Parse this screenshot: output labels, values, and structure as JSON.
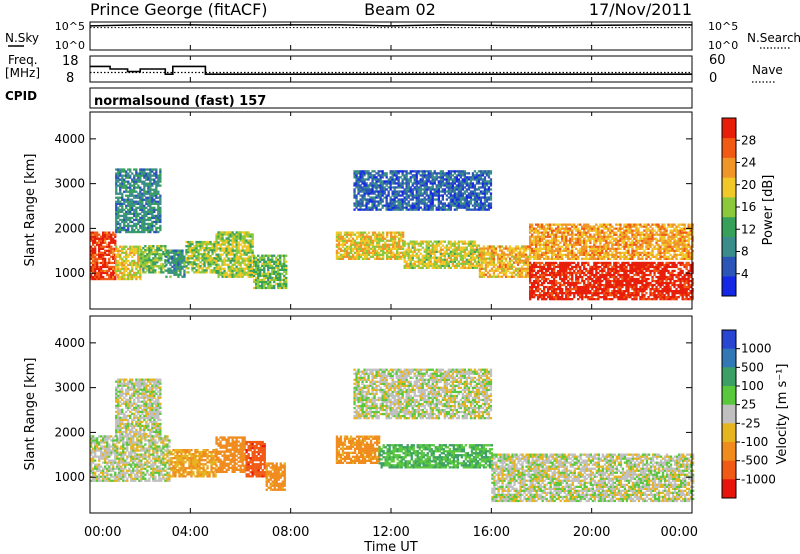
{
  "header": {
    "station": "Prince George (fitACF)",
    "beam": "Beam 02",
    "date": "17/Nov/2011"
  },
  "panels": {
    "nsky_label": "N.Sky",
    "nsky_ticks": [
      "10^5",
      "10^0"
    ],
    "nsearch_label": "N.Search",
    "freq_label": "Freq.",
    "freq_unit": "[MHz]",
    "freq_ticks": [
      "18",
      "8"
    ],
    "nave_label": "Nave",
    "nave_ticks": [
      "60",
      "0"
    ],
    "cpid_label": "CPID",
    "cpid_value": "normalsound (fast) 157"
  },
  "x_axis": {
    "label": "Time UT",
    "ticks": [
      "00:00",
      "04:00",
      "08:00",
      "12:00",
      "16:00",
      "20:00",
      "00:00"
    ]
  },
  "colors": {
    "power": [
      "#1428e6",
      "#2c55b8",
      "#3b8d8c",
      "#37a05a",
      "#8cc83c",
      "#f0c828",
      "#f09628",
      "#f05a14",
      "#e61e0a"
    ],
    "velocity": [
      "#2846d2",
      "#3278b4",
      "#3ca064",
      "#5ac83c",
      "#c0c0c0",
      "#e6b41e",
      "#f08c1e",
      "#f05a14",
      "#e6140a"
    ]
  },
  "chart_data": [
    {
      "type": "line",
      "panel": "nsky-nsearch",
      "x": [
        0,
        2,
        4,
        6,
        8,
        10,
        12,
        14,
        16,
        18,
        20,
        22,
        24
      ],
      "series": [
        {
          "name": "N.Sky",
          "values": [
            20000,
            30000,
            30000,
            25000,
            30000,
            30000,
            20000,
            30000,
            25000,
            20000,
            25000,
            30000,
            30000
          ]
        },
        {
          "name": "N.Search",
          "values": [
            10000,
            10000,
            10000,
            10000,
            10000,
            10000,
            10000,
            10000,
            10000,
            10000,
            10000,
            10000,
            10000
          ]
        }
      ],
      "ylabel": "N.Sky",
      "ytick_labels": [
        "10^5",
        "10^0"
      ],
      "ylim": [
        1,
        100000
      ],
      "log_y": true
    },
    {
      "type": "line",
      "panel": "freq-nave",
      "x": [
        0,
        0.8,
        0.8,
        1.5,
        1.5,
        2.0,
        2.0,
        3.0,
        3.0,
        3.3,
        3.3,
        4.6,
        4.6,
        24
      ],
      "series": [
        {
          "name": "Freq.",
          "values": [
            14,
            14,
            13,
            13,
            12,
            12,
            13,
            13,
            11,
            11,
            14,
            14,
            11,
            11
          ]
        },
        {
          "name": "Nave",
          "values": [
            22,
            22,
            22,
            22,
            22,
            22,
            22,
            22,
            22,
            22,
            22,
            22,
            22,
            22
          ]
        }
      ],
      "ylabel": "Freq. [MHz]",
      "ylim": [
        8,
        18
      ],
      "y2label": "Nave",
      "y2lim": [
        0,
        60
      ]
    },
    {
      "type": "heatmap",
      "panel": "power",
      "title": "",
      "xlabel": "",
      "ylabel": "Slant Range [km]",
      "xlim": [
        0,
        24
      ],
      "ylim": [
        200,
        4600
      ],
      "yticks": [
        1000,
        2000,
        3000,
        4000
      ],
      "colorbar_label": "Power [dB]",
      "colorbar_ticks": [
        4,
        8,
        12,
        16,
        20,
        24,
        28
      ],
      "regions": [
        {
          "t": [
            0.0,
            1.0
          ],
          "r": [
            850,
            1900
          ],
          "level": 27
        },
        {
          "t": [
            1.0,
            2.0
          ],
          "r": [
            850,
            1600
          ],
          "level": 18
        },
        {
          "t": [
            2.0,
            3.0
          ],
          "r": [
            1000,
            1600
          ],
          "level": 14
        },
        {
          "t": [
            3.0,
            3.8
          ],
          "r": [
            900,
            1500
          ],
          "level": 10
        },
        {
          "t": [
            3.8,
            5.0
          ],
          "r": [
            1000,
            1700
          ],
          "level": 15
        },
        {
          "t": [
            5.0,
            6.5
          ],
          "r": [
            900,
            1900
          ],
          "level": 16
        },
        {
          "t": [
            6.5,
            7.8
          ],
          "r": [
            650,
            1400
          ],
          "level": 14
        },
        {
          "t": [
            9.8,
            12.5
          ],
          "r": [
            1300,
            1900
          ],
          "level": 19
        },
        {
          "t": [
            12.5,
            15.5
          ],
          "r": [
            1100,
            1700
          ],
          "level": 17
        },
        {
          "t": [
            15.5,
            17.5
          ],
          "r": [
            900,
            1600
          ],
          "level": 20
        },
        {
          "t": [
            17.5,
            24.0
          ],
          "r": [
            400,
            1250
          ],
          "level": 29
        },
        {
          "t": [
            10.5,
            16.0
          ],
          "r": [
            2400,
            3300
          ],
          "level": 6
        },
        {
          "t": [
            1.0,
            2.8
          ],
          "r": [
            1900,
            3300
          ],
          "level": 9
        },
        {
          "t": [
            17.5,
            24.0
          ],
          "r": [
            1300,
            2100
          ],
          "level": 21
        }
      ]
    },
    {
      "type": "heatmap",
      "panel": "velocity",
      "title": "",
      "xlabel": "Time UT",
      "ylabel": "Slant Range [km]",
      "xlim": [
        0,
        24
      ],
      "ylim": [
        200,
        4600
      ],
      "yticks": [
        1000,
        2000,
        3000,
        4000
      ],
      "colorbar_label": "Velocity [m s⁻¹]",
      "colorbar_ticks": [
        1000,
        500,
        100,
        25,
        -25,
        -100,
        -500,
        -1000
      ],
      "regions": [
        {
          "t": [
            0.0,
            3.2
          ],
          "r": [
            900,
            1900
          ],
          "level": 0
        },
        {
          "t": [
            3.2,
            5.0
          ],
          "r": [
            1000,
            1600
          ],
          "level": -150
        },
        {
          "t": [
            5.0,
            6.2
          ],
          "r": [
            1100,
            1900
          ],
          "level": -300
        },
        {
          "t": [
            6.2,
            7.0
          ],
          "r": [
            1000,
            1800
          ],
          "level": -700
        },
        {
          "t": [
            7.0,
            7.8
          ],
          "r": [
            700,
            1300
          ],
          "level": -200
        },
        {
          "t": [
            9.8,
            11.5
          ],
          "r": [
            1300,
            1900
          ],
          "level": -200
        },
        {
          "t": [
            11.5,
            16.0
          ],
          "r": [
            1200,
            1700
          ],
          "level": 150
        },
        {
          "t": [
            16.0,
            24.0
          ],
          "r": [
            450,
            1500
          ],
          "level": 0
        },
        {
          "t": [
            10.5,
            16.0
          ],
          "r": [
            2300,
            3400
          ],
          "level": 0
        },
        {
          "t": [
            1.0,
            2.8
          ],
          "r": [
            1900,
            3200
          ],
          "level": 0
        }
      ]
    }
  ]
}
